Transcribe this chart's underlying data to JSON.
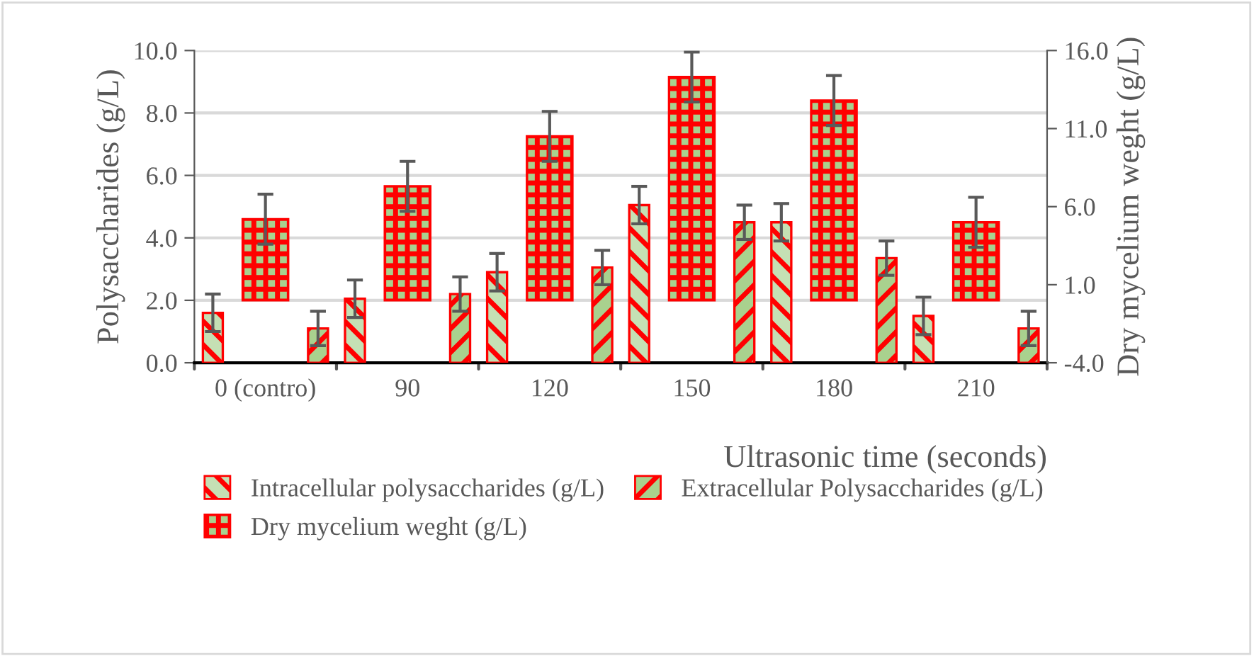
{
  "chart_data": {
    "type": "bar",
    "xlabel": "Ultrasonic time (seconds)",
    "ylabel": "Polysaccharides (g/L)",
    "y2label": "Dry mycelium weght (g/L)",
    "categories": [
      "0 (contro)",
      "90",
      "120",
      "150",
      "180",
      "210"
    ],
    "series": [
      {
        "name": "Intracellular polysaccharides (g/L)",
        "color": "#ff0000",
        "values": [
          1.6,
          2.05,
          2.9,
          5.05,
          4.5,
          1.5
        ],
        "errors": [
          0.6,
          0.6,
          0.6,
          0.6,
          0.6,
          0.6
        ]
      },
      {
        "name": "Extracellular Polysaccharides (g/L)",
        "color": "#ff0000",
        "values": [
          1.1,
          2.2,
          3.05,
          4.5,
          3.35,
          1.1
        ],
        "errors": [
          0.55,
          0.55,
          0.55,
          0.55,
          0.55,
          0.55
        ]
      },
      {
        "name": "Dry mycelium weght (g/L)",
        "color": "#ff0000",
        "axis": "y2",
        "values": [
          5.2,
          7.3,
          10.5,
          14.3,
          12.8,
          5.0
        ],
        "errors": [
          1.6,
          1.6,
          1.6,
          1.6,
          1.6,
          1.6
        ]
      }
    ],
    "ylim": [
      0,
      10
    ],
    "yticks": [
      {
        "value": 0,
        "label": "0.0"
      },
      {
        "value": 2,
        "label": "2.0"
      },
      {
        "value": 4,
        "label": "4.0"
      },
      {
        "value": 6,
        "label": "6.0"
      },
      {
        "value": 8,
        "label": "8.0"
      },
      {
        "value": 10,
        "label": "10.0"
      }
    ],
    "y2lim": [
      -4,
      16
    ],
    "y2ticks": [
      {
        "value": -4,
        "label": "-4.0"
      },
      {
        "value": 1,
        "label": "1.0"
      },
      {
        "value": 6,
        "label": "6.0"
      },
      {
        "value": 11,
        "label": "11.0"
      },
      {
        "value": 16,
        "label": "16.0"
      }
    ],
    "grid": "y",
    "legend": "bottom"
  }
}
